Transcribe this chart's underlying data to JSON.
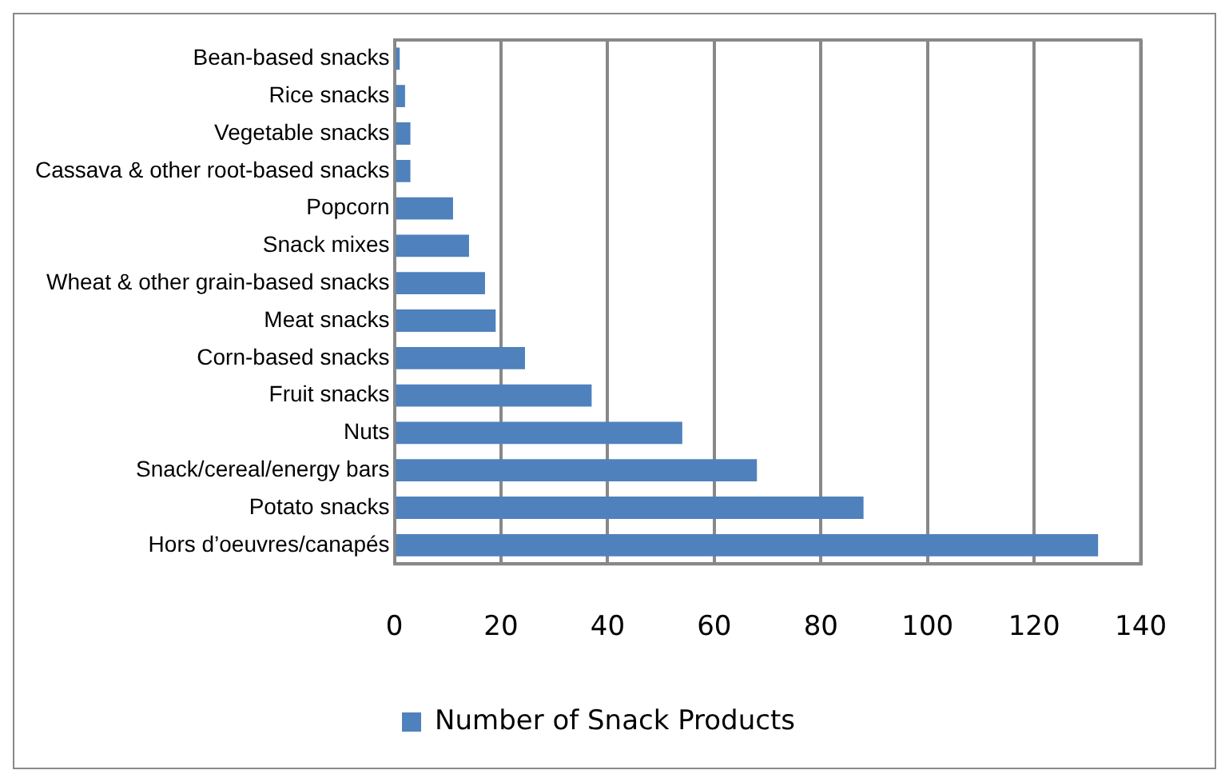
{
  "chart_data": {
    "type": "bar",
    "orientation": "horizontal",
    "categories": [
      "Bean-based snacks",
      "Rice snacks",
      "Vegetable snacks",
      "Cassava & other root-based snacks",
      "Popcorn",
      "Snack mixes",
      "Wheat & other grain-based snacks",
      "Meat snacks",
      "Corn-based snacks",
      "Fruit snacks",
      "Nuts",
      "Snack/cereal/energy bars",
      "Potato snacks",
      "Hors d’oeuvres/canapés"
    ],
    "series": [
      {
        "name": "Number of Snack Products",
        "color": "#4f81bd",
        "values": [
          1,
          2,
          3,
          3,
          11,
          14,
          17,
          19,
          24.5,
          37,
          54,
          68,
          88,
          132
        ]
      }
    ],
    "xlim": [
      0,
      140
    ],
    "xticks": [
      0,
      20,
      40,
      60,
      80,
      100,
      120,
      140
    ],
    "grid": "x",
    "legend": "bottom"
  }
}
